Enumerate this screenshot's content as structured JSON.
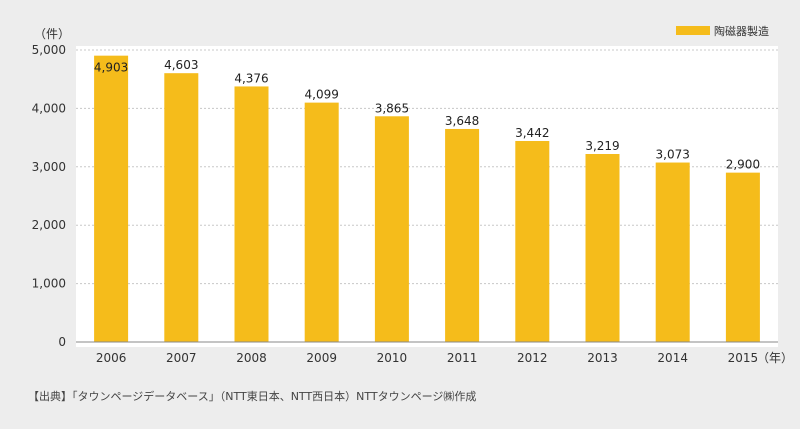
{
  "chart_data": {
    "type": "bar",
    "categories": [
      "2006",
      "2007",
      "2008",
      "2009",
      "2010",
      "2011",
      "2012",
      "2013",
      "2014",
      "2015"
    ],
    "series": [
      {
        "name": "陶磁器製造",
        "values": [
          4903,
          4603,
          4376,
          4099,
          3865,
          3648,
          3442,
          3219,
          3073,
          2900
        ]
      }
    ],
    "value_labels": [
      "4,903",
      "4,603",
      "4,376",
      "4,099",
      "3,865",
      "3,648",
      "3,442",
      "3,219",
      "3,073",
      "2,900"
    ],
    "y_ticks": [
      0,
      1000,
      2000,
      3000,
      4000,
      5000
    ],
    "y_tick_labels": [
      "0",
      "1,000",
      "2,000",
      "3,000",
      "4,000",
      "5,000"
    ],
    "ylim": [
      0,
      5000
    ],
    "ylabel": "（件）",
    "xlabel": "（年）",
    "grid": true,
    "legend_position": "top-right",
    "bar_color": "#f5bc1b"
  },
  "source_note": "【出典】「タウンページデータベース」（NTT東日本、NTT西日本）NTTタウンページ㈱作成"
}
